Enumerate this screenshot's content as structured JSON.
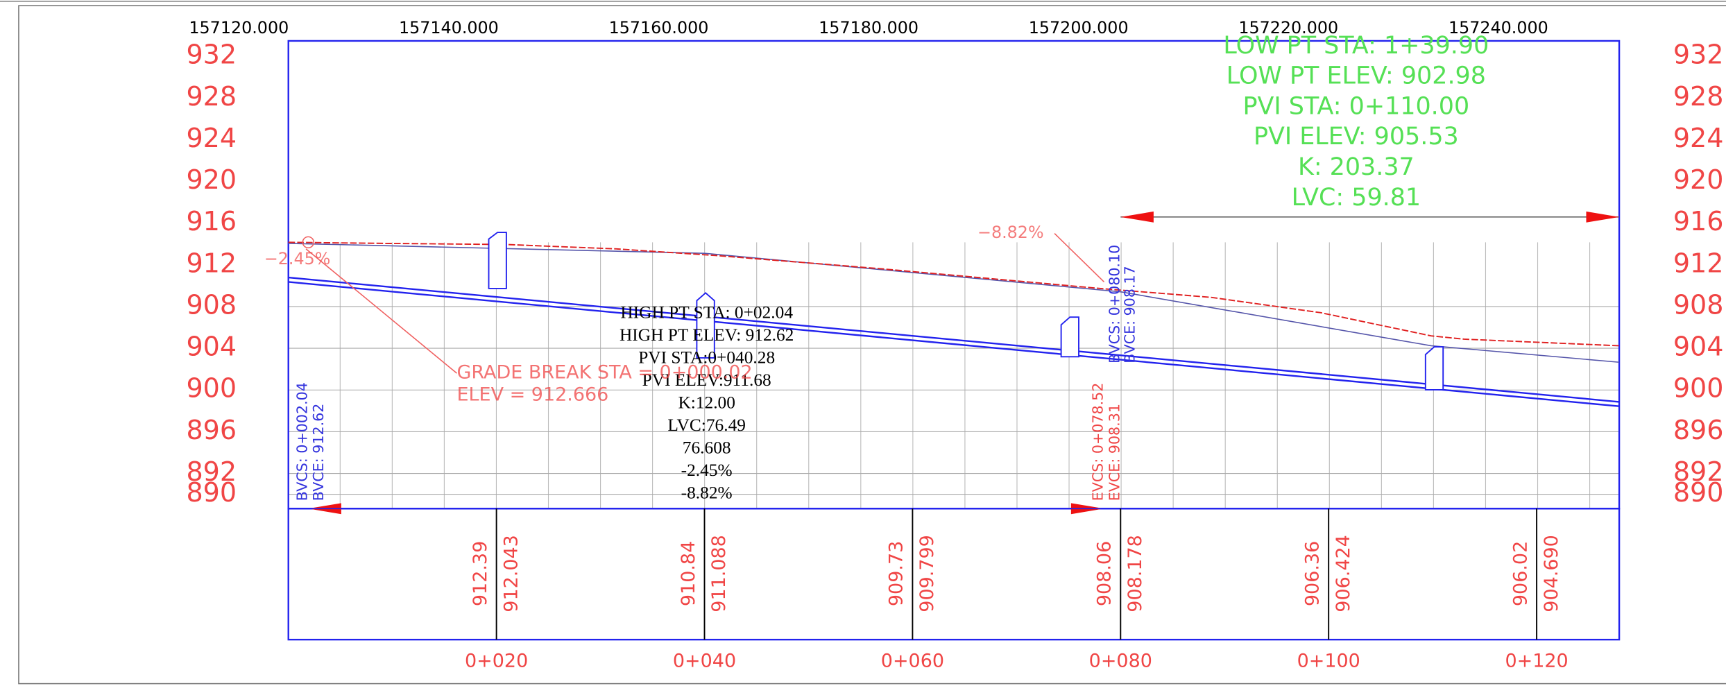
{
  "top_stations": [
    "157120.000",
    "157140.000",
    "157160.000",
    "157180.000",
    "157200.000",
    "157220.000",
    "157240.000"
  ],
  "elevations": [
    932,
    928,
    924,
    920,
    916,
    912,
    908,
    904,
    900,
    896,
    892,
    890
  ],
  "curve_info": [
    "LOW PT STA:  1+39.90",
    "LOW PT ELEV:  902.98",
    "PVI  STA: 0+110.00",
    "PVI  ELEV: 905.53",
    "K: 203.37",
    "LVC: 59.81"
  ],
  "high_point_info": [
    "HIGH PT STA: 0+02.04",
    "HIGH PT ELEV: 912.62",
    "PVI STA:0+040.28",
    "PVI ELEV:911.68",
    "K:12.00",
    "LVC:76.49",
    "76.608",
    "-2.45%",
    "-8.82%"
  ],
  "grade_break": [
    "GRADE BREAK STA = 0+000.02",
    "ELEV =    912.666"
  ],
  "grades": [
    "−2.45%",
    "−8.82%"
  ],
  "vertical_labels": [
    "BVCS: 0+002.04",
    "BVCE: 912.62",
    "EVCS: 0+078.52",
    "EVCE: 908.31",
    "BVCS: 0+080.10",
    "BVCE: 908.17"
  ],
  "table": [
    [
      "912.39",
      "912.043"
    ],
    [
      "910.84",
      "911.088"
    ],
    [
      "909.73",
      "909.799"
    ],
    [
      "908.06",
      "908.178"
    ],
    [
      "906.36",
      "906.424"
    ],
    [
      "906.02",
      "904.690"
    ]
  ],
  "stations": [
    "0+020",
    "0+040",
    "0+060",
    "0+080",
    "0+100",
    "0+120"
  ]
}
